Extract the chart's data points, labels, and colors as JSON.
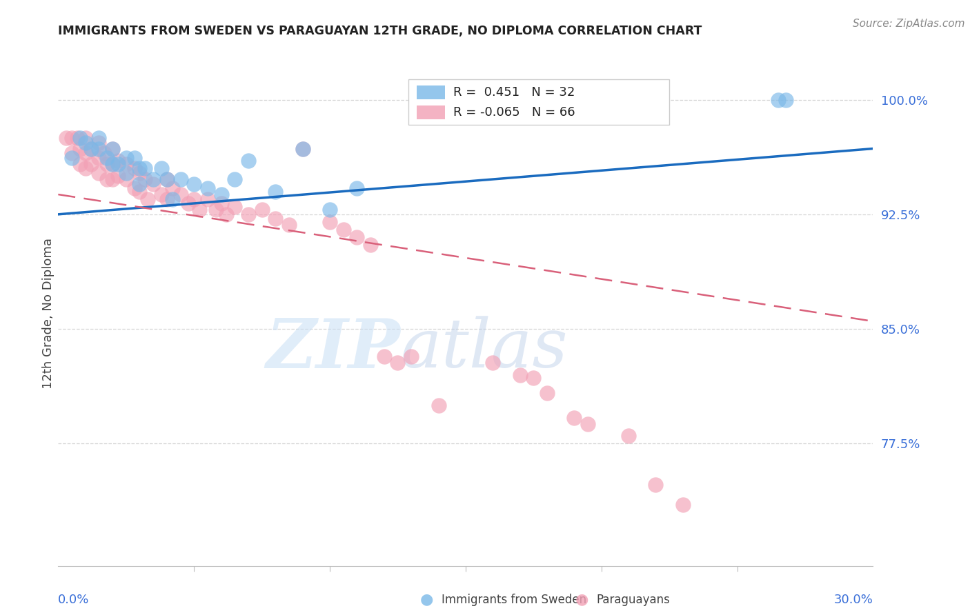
{
  "title": "IMMIGRANTS FROM SWEDEN VS PARAGUAYAN 12TH GRADE, NO DIPLOMA CORRELATION CHART",
  "source": "Source: ZipAtlas.com",
  "ylabel": "12th Grade, No Diploma",
  "ytick_labels": [
    "100.0%",
    "92.5%",
    "85.0%",
    "77.5%"
  ],
  "ytick_values": [
    1.0,
    0.925,
    0.85,
    0.775
  ],
  "xlim": [
    0.0,
    0.3
  ],
  "ylim": [
    0.695,
    1.025
  ],
  "legend_r_sweden": "R =  0.451",
  "legend_n_sweden": "N = 32",
  "legend_r_para": "R = -0.065",
  "legend_n_para": "N = 66",
  "color_sweden": "#7ab8e8",
  "color_para": "#f2a0b5",
  "trendline_color_sweden": "#1a6bbf",
  "trendline_color_para": "#d9607a",
  "background_color": "#ffffff",
  "watermark_zip": "ZIP",
  "watermark_atlas": "atlas",
  "sweden_trendline": [
    [
      0.0,
      0.925
    ],
    [
      0.3,
      0.968
    ]
  ],
  "para_trendline": [
    [
      0.0,
      0.938
    ],
    [
      0.3,
      0.855
    ]
  ],
  "sweden_points_x": [
    0.005,
    0.008,
    0.01,
    0.012,
    0.015,
    0.015,
    0.018,
    0.02,
    0.02,
    0.022,
    0.025,
    0.025,
    0.028,
    0.03,
    0.03,
    0.032,
    0.035,
    0.038,
    0.04,
    0.042,
    0.045,
    0.05,
    0.055,
    0.06,
    0.065,
    0.07,
    0.08,
    0.09,
    0.1,
    0.11,
    0.265,
    0.268
  ],
  "sweden_points_y": [
    0.962,
    0.975,
    0.972,
    0.968,
    0.975,
    0.968,
    0.962,
    0.968,
    0.958,
    0.958,
    0.962,
    0.952,
    0.962,
    0.955,
    0.945,
    0.955,
    0.948,
    0.955,
    0.948,
    0.935,
    0.948,
    0.945,
    0.942,
    0.938,
    0.948,
    0.96,
    0.94,
    0.968,
    0.928,
    0.942,
    1.0,
    1.0
  ],
  "para_points_x": [
    0.003,
    0.005,
    0.005,
    0.007,
    0.008,
    0.008,
    0.01,
    0.01,
    0.01,
    0.012,
    0.012,
    0.015,
    0.015,
    0.015,
    0.017,
    0.018,
    0.018,
    0.02,
    0.02,
    0.02,
    0.022,
    0.022,
    0.025,
    0.025,
    0.028,
    0.028,
    0.03,
    0.03,
    0.032,
    0.033,
    0.035,
    0.038,
    0.04,
    0.04,
    0.042,
    0.045,
    0.048,
    0.05,
    0.052,
    0.055,
    0.058,
    0.06,
    0.062,
    0.065,
    0.07,
    0.075,
    0.08,
    0.085,
    0.09,
    0.1,
    0.105,
    0.11,
    0.115,
    0.12,
    0.125,
    0.13,
    0.14,
    0.16,
    0.17,
    0.175,
    0.18,
    0.19,
    0.195,
    0.21,
    0.22,
    0.23
  ],
  "para_points_y": [
    0.975,
    0.975,
    0.965,
    0.975,
    0.968,
    0.958,
    0.975,
    0.965,
    0.955,
    0.968,
    0.958,
    0.972,
    0.962,
    0.952,
    0.965,
    0.958,
    0.948,
    0.968,
    0.958,
    0.948,
    0.96,
    0.95,
    0.958,
    0.948,
    0.955,
    0.942,
    0.952,
    0.94,
    0.948,
    0.935,
    0.945,
    0.938,
    0.948,
    0.935,
    0.942,
    0.938,
    0.932,
    0.935,
    0.928,
    0.935,
    0.928,
    0.932,
    0.925,
    0.93,
    0.925,
    0.928,
    0.922,
    0.918,
    0.968,
    0.92,
    0.915,
    0.91,
    0.905,
    0.832,
    0.828,
    0.832,
    0.8,
    0.828,
    0.82,
    0.818,
    0.808,
    0.792,
    0.788,
    0.78,
    0.748,
    0.735
  ]
}
